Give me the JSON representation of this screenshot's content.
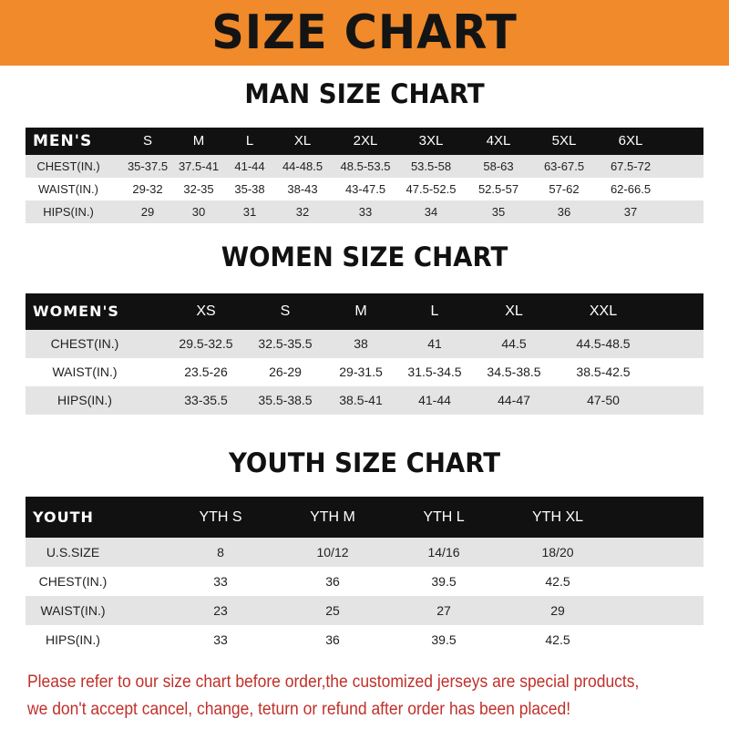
{
  "banner": {
    "title": "SIZE CHART",
    "color": "#f08a2a"
  },
  "men": {
    "title": "MAN SIZE CHART",
    "header": [
      "MEN'S",
      "S",
      "M",
      "L",
      "XL",
      "2XL",
      "3XL",
      "4XL",
      "5XL",
      "6XL"
    ],
    "rows": [
      [
        "CHEST(IN.)",
        "35-37.5",
        "37.5-41",
        "41-44",
        "44-48.5",
        "48.5-53.5",
        "53.5-58",
        "58-63",
        "63-67.5",
        "67.5-72"
      ],
      [
        "WAIST(IN.)",
        "29-32",
        "32-35",
        "35-38",
        "38-43",
        "43-47.5",
        "47.5-52.5",
        "52.5-57",
        "57-62",
        "62-66.5"
      ],
      [
        "HIPS(IN.)",
        "29",
        "30",
        "31",
        "32",
        "33",
        "34",
        "35",
        "36",
        "37"
      ]
    ]
  },
  "women": {
    "title": "WOMEN SIZE CHART",
    "header": [
      "WOMEN'S",
      "XS",
      "S",
      "M",
      "L",
      "XL",
      "XXL"
    ],
    "rows": [
      [
        "CHEST(IN.)",
        "29.5-32.5",
        "32.5-35.5",
        "38",
        "41",
        "44.5",
        "44.5-48.5"
      ],
      [
        "WAIST(IN.)",
        "23.5-26",
        "26-29",
        "29-31.5",
        "31.5-34.5",
        "34.5-38.5",
        "38.5-42.5"
      ],
      [
        "HIPS(IN.)",
        "33-35.5",
        "35.5-38.5",
        "38.5-41",
        "41-44",
        "44-47",
        "47-50"
      ]
    ]
  },
  "youth": {
    "title": "YOUTH SIZE CHART",
    "header": [
      "YOUTH",
      "YTH S",
      "YTH M",
      "YTH L",
      "YTH XL"
    ],
    "rows": [
      [
        "U.S.SIZE",
        "8",
        "10/12",
        "14/16",
        "18/20"
      ],
      [
        "CHEST(IN.)",
        "33",
        "36",
        "39.5",
        "42.5"
      ],
      [
        "WAIST(IN.)",
        "23",
        "25",
        "27",
        "29"
      ],
      [
        "HIPS(IN.)",
        "33",
        "36",
        "39.5",
        "42.5"
      ]
    ]
  },
  "notice": {
    "line1": "Please refer to our size chart before order,the customized jerseys are special products,",
    "line2": "we don't accept cancel, change, teturn or refund after order has been placed!",
    "color": "#c0302a"
  }
}
